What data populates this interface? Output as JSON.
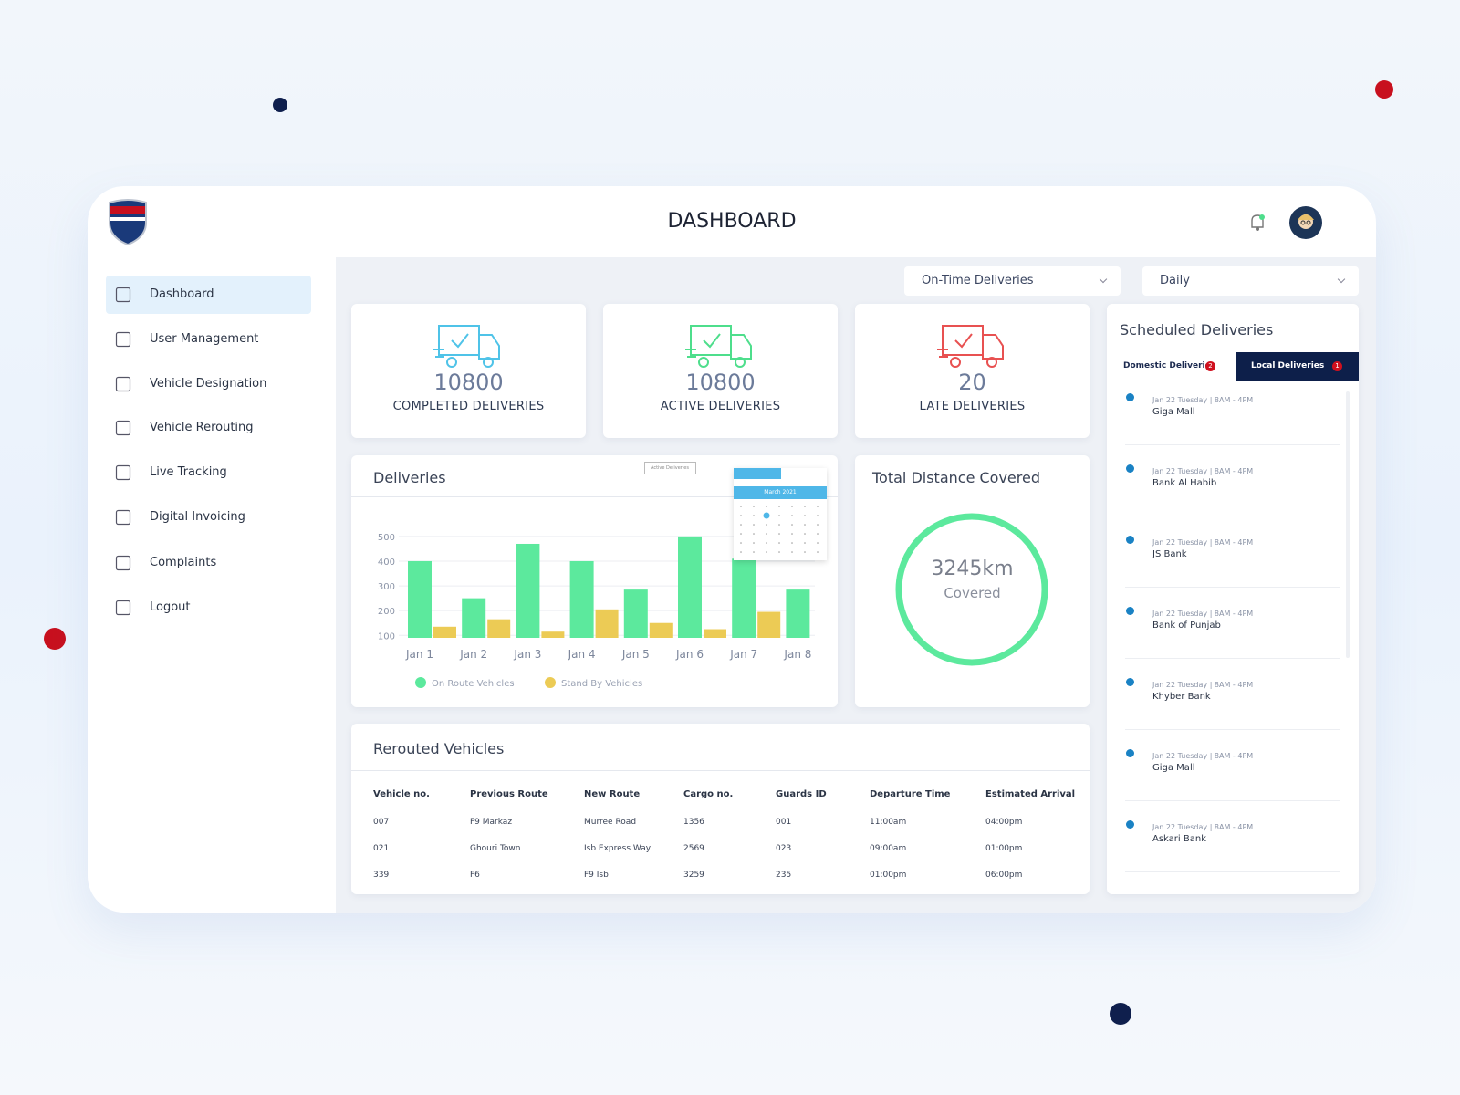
{
  "header": {
    "title": "DASHBOARD"
  },
  "sidebar": {
    "items": [
      "Dashboard",
      "User Management",
      "Vehicle Designation",
      "Vehicle Rerouting",
      "Live Tracking",
      "Digital Invoicing",
      "Complaints",
      "Logout"
    ]
  },
  "filters": [
    "On-Time Deliveries",
    "Daily"
  ],
  "stats": [
    {
      "value": 10800,
      "label": "COMPLETED DELIVERIES",
      "color": "#4fc3e8"
    },
    {
      "value": 10800,
      "label": "ACTIVE DELIVERIES",
      "color": "#4ede8c"
    },
    {
      "value": 20,
      "label": "LATE DELIVERIES",
      "color": "#e85151"
    }
  ],
  "deliveries_chart": {
    "type": "bar",
    "title": "Deliveries",
    "filter": "Active Deliveries",
    "calendar_month": "March  2021",
    "categories": [
      "Jan 1",
      "Jan 2",
      "Jan 3",
      "Jan 4",
      "Jan 5",
      "Jan 6",
      "Jan 7",
      "Jan 8"
    ],
    "series": [
      {
        "name": "On Route Vehicles",
        "color": "#5ce99d",
        "values": [
          400,
          250,
          470,
          400,
          285,
          500,
          410,
          285
        ]
      },
      {
        "name": "Stand By Vehicles",
        "color": "#eccb55",
        "values": [
          135,
          165,
          115,
          205,
          150,
          125,
          195,
          null
        ]
      }
    ],
    "ylim": [
      90,
      540
    ],
    "yticks": [
      100,
      200,
      300,
      400,
      500
    ],
    "grid": true
  },
  "distance": {
    "title": "Total Distance Covered",
    "value": "3245km",
    "label": "Covered",
    "color": "#5ce99d"
  },
  "rerouted": {
    "title": "Rerouted Vehicles",
    "columns": [
      "Vehicle no.",
      "Previous Route",
      "New Route",
      "Cargo no.",
      "Guards ID",
      "Departure Time",
      "Estimated Arrival"
    ],
    "rows": [
      [
        "007",
        "F9 Markaz",
        "Murree Road",
        "1356",
        "001",
        "11:00am",
        "04:00pm"
      ],
      [
        "021",
        "Ghouri Town",
        "Isb Express Way",
        "2569",
        "023",
        "09:00am",
        "01:00pm"
      ],
      [
        "339",
        "F6",
        "F9 Isb",
        "3259",
        "235",
        "01:00pm",
        "06:00pm"
      ]
    ]
  },
  "scheduled": {
    "title": "Scheduled Deliveries",
    "tabs": [
      {
        "label": "Domestic Deliveries",
        "badge": 2
      },
      {
        "label": "Local Deliveries",
        "badge": 1
      }
    ],
    "items": [
      {
        "time": "Jan 22 Tuesday | 8AM - 4PM",
        "place": "Giga Mall"
      },
      {
        "time": "Jan 22 Tuesday | 8AM - 4PM",
        "place": "Bank Al Habib"
      },
      {
        "time": "Jan 22 Tuesday | 8AM - 4PM",
        "place": "JS Bank"
      },
      {
        "time": "Jan 22 Tuesday | 8AM - 4PM",
        "place": "Bank of Punjab"
      },
      {
        "time": "Jan 22 Tuesday | 8AM - 4PM",
        "place": "Khyber Bank"
      },
      {
        "time": "Jan 22 Tuesday | 8AM - 4PM",
        "place": "Giga Mall"
      },
      {
        "time": "Jan 22 Tuesday | 8AM - 4PM",
        "place": "Askari Bank"
      }
    ]
  }
}
